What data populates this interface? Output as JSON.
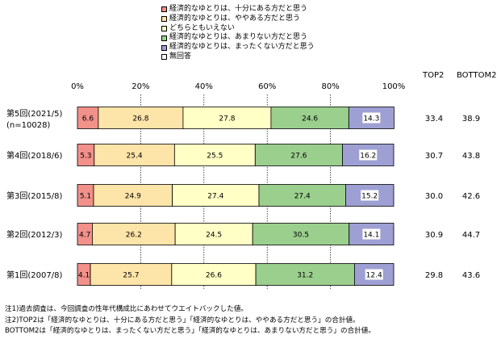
{
  "chart_data": {
    "type": "bar",
    "orientation": "horizontal",
    "stacked": true,
    "xlim": [
      0,
      100
    ],
    "x_ticks": [
      "0%",
      "20%",
      "40%",
      "60%",
      "80%",
      "100%"
    ],
    "categories": [
      [
        "第5回(2021/5)",
        "(n=10028)"
      ],
      [
        "第4回(2018/6)"
      ],
      [
        "第3回(2015/8)"
      ],
      [
        "第2回(2012/3)"
      ],
      [
        "第1回(2007/8)"
      ]
    ],
    "series": [
      {
        "name": "経済的なゆとりは、十分にある方だと思う",
        "color": "#f2908a",
        "values": [
          6.6,
          5.3,
          5.1,
          4.7,
          4.1
        ]
      },
      {
        "name": "経済的なゆとりは、ややある方だと思う",
        "color": "#fde4a8",
        "values": [
          26.8,
          25.4,
          24.9,
          26.2,
          25.7
        ]
      },
      {
        "name": "どちらともいえない",
        "color": "#ffffc6",
        "values": [
          27.8,
          25.5,
          27.4,
          24.5,
          26.6
        ]
      },
      {
        "name": "経済的なゆとりは、あまりない方だと思う",
        "color": "#9bcf8d",
        "values": [
          24.6,
          27.6,
          27.4,
          30.5,
          31.2
        ]
      },
      {
        "name": "経済的なゆとりは、まったくない方だと思う",
        "color": "#9ea0d4",
        "values": [
          14.3,
          16.2,
          15.2,
          14.1,
          12.4
        ]
      },
      {
        "name": "無回答",
        "color": "#ffffff",
        "values": [
          0.0,
          0.0,
          0.0,
          0.0,
          0.0
        ]
      }
    ],
    "value_labels": [
      [
        "6.6",
        "26.8",
        "27.8",
        "24.6",
        "14.3"
      ],
      [
        "5.3",
        "25.4",
        "25.5",
        "27.6",
        "16.2"
      ],
      [
        "5.1",
        "24.9",
        "27.4",
        "27.4",
        "15.2"
      ],
      [
        "4.7",
        "26.2",
        "24.5",
        "30.5",
        "14.1"
      ],
      [
        "4.1",
        "25.7",
        "26.6",
        "31.2",
        "12.4"
      ]
    ],
    "summary_columns": {
      "top2_label": "TOP2",
      "bottom2_label": "BOTTOM2",
      "top2": [
        "33.4",
        "30.7",
        "30.0",
        "30.9",
        "29.8"
      ],
      "bottom2": [
        "38.9",
        "43.8",
        "42.6",
        "44.7",
        "43.6"
      ]
    }
  },
  "notes": [
    "注1)過去調査は、今回調査の性年代構成比にあわせてウエイトバックした値。",
    "注2)TOP2は「経済的なゆとりは、十分にある方だと思う」「経済的なゆとりは、ややある方だと思う」の合計値。",
    "BOTTOM2は「経済的なゆとりは、まったくない方だと思う」「経済的なゆとりは、あまりない方だと思う」の合計値。"
  ]
}
